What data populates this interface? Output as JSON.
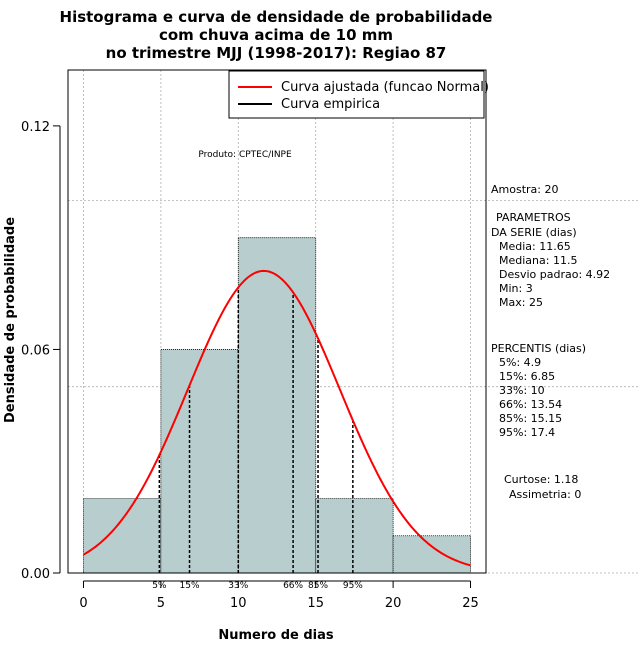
{
  "chart_data": {
    "type": "bar",
    "title": [
      "Histograma e curva de densidade de probabilidade",
      "com chuva acima de 10 mm",
      "no trimestre MJJ (1998-2017): Regiao 87"
    ],
    "xlabel": "Numero de dias",
    "ylabel": "Densidade de probabilidade",
    "xlim": [
      -1,
      26
    ],
    "ylim": [
      0,
      0.135
    ],
    "x_ticks": [
      0,
      5,
      10,
      15,
      20,
      25
    ],
    "y_ticks": [
      0.0,
      0.06,
      0.12
    ],
    "y_tick_labels": [
      "0.00",
      "0.06",
      "0.12"
    ],
    "bins": [
      {
        "from": 0,
        "to": 5,
        "density": 0.02
      },
      {
        "from": 5,
        "to": 10,
        "density": 0.06
      },
      {
        "from": 10,
        "to": 15,
        "density": 0.09
      },
      {
        "from": 15,
        "to": 20,
        "density": 0.02
      },
      {
        "from": 20,
        "to": 25,
        "density": 0.01
      }
    ],
    "fitted_curve": {
      "name": "Curva ajustada (funcao Normal)",
      "distribution": "normal",
      "mean": 11.65,
      "sd": 4.92,
      "x_range": [
        0,
        25
      ],
      "color": "#ff0000"
    },
    "empirical_curve": {
      "name": "Curva empirica",
      "color": "#000000"
    },
    "percentiles": [
      {
        "label": "5%",
        "x": 4.9
      },
      {
        "label": "15%",
        "x": 6.85
      },
      {
        "label": "33%",
        "x": 10
      },
      {
        "label": "66%",
        "x": 13.54
      },
      {
        "label": "85%",
        "x": 15.15
      },
      {
        "label": "95%",
        "x": 17.4
      }
    ],
    "annotation": "Produto: CPTEC/INPE",
    "bar_color": "#b8cece"
  },
  "side_panel": {
    "sample": "Amostra: 20",
    "params_heading": [
      "PARAMETROS",
      "DA SERIE (dias)"
    ],
    "params": [
      "Media: 11.65",
      "Mediana: 11.5",
      "Desvio padrao: 4.92",
      "Min: 3",
      "Max: 25"
    ],
    "percentiles_heading": "PERCENTIS (dias)",
    "percentiles": [
      "5%: 4.9",
      "15%: 6.85",
      "33%: 10",
      "66%: 13.54",
      "85%: 15.15",
      "95%: 17.4"
    ],
    "kurtosis": "Curtose: 1.18",
    "skewness": "Assimetria: 0"
  }
}
